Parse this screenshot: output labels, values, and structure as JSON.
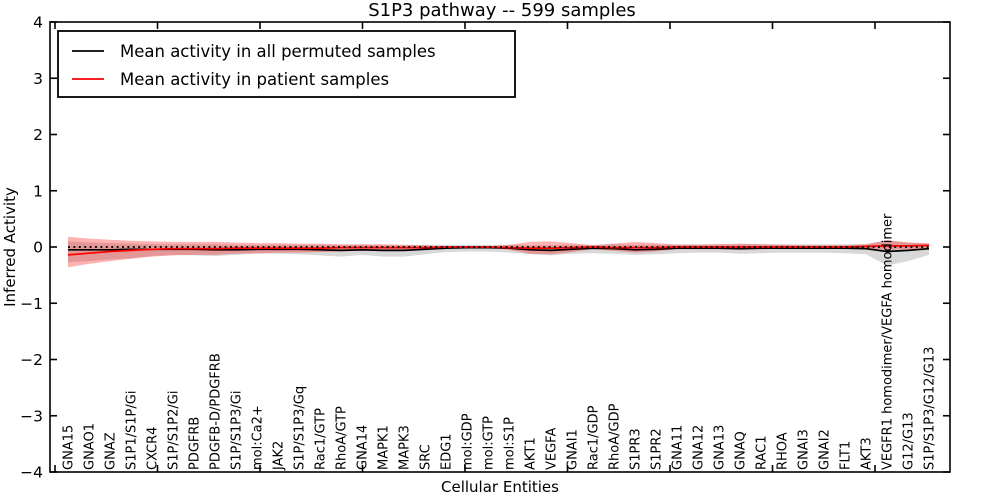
{
  "figure": {
    "title": "S1P3 pathway -- 599 samples",
    "xlabel": "Cellular Entities",
    "ylabel": "Inferred Activity"
  },
  "legend": {
    "items": [
      {
        "label": "Mean activity in all permuted samples",
        "color": "#000000"
      },
      {
        "label": "Mean activity in patient samples",
        "color": "#ff0000"
      }
    ]
  },
  "axes": {
    "yticks": [
      "4",
      "3",
      "2",
      "1",
      "0",
      "−1",
      "−2",
      "−3",
      "−4"
    ],
    "ytick_values": [
      4,
      3,
      2,
      1,
      0,
      -1,
      -2,
      -3,
      -4
    ],
    "ylim": [
      -4,
      4
    ],
    "x_major_tick_count": 9
  },
  "chart_data": {
    "type": "line",
    "title": "S1P3 pathway -- 599 samples",
    "xlabel": "Cellular Entities",
    "ylabel": "Inferred Activity",
    "ylim": [
      -4,
      4
    ],
    "legend_position": "upper left",
    "grid": false,
    "categories": [
      "GNA15",
      "GNAO1",
      "GNAZ",
      "S1P1/S1P/Gi",
      "CXCR4",
      "S1P/S1P2/Gi",
      "PDGFRB",
      "PDGFB-D/PDGFRB",
      "S1P/S1P3/Gi",
      "mol:Ca2+",
      "JAK2",
      "S1P/S1P3/Gq",
      "Rac1/GTP",
      "RhoA/GTP",
      "GNA14",
      "MAPK1",
      "MAPK3",
      "SRC",
      "EDG1",
      "mol:GDP",
      "mol:GTP",
      "mol:S1P",
      "AKT1",
      "VEGFA",
      "GNAI1",
      "Rac1/GDP",
      "RhoA/GDP",
      "S1PR3",
      "S1PR2",
      "GNA11",
      "GNA12",
      "GNA13",
      "GNAQ",
      "RAC1",
      "RHOA",
      "GNAI3",
      "GNAI2",
      "FLT1",
      "AKT3",
      "VEGFR1 homodimer/VEGFA homodimer",
      "G12/G13",
      "S1P/S1P3/G12/G13"
    ],
    "series": [
      {
        "name": "Mean activity in all permuted samples",
        "color": "#000000",
        "values": [
          -0.05,
          -0.05,
          -0.05,
          -0.04,
          -0.04,
          -0.04,
          -0.04,
          -0.05,
          -0.05,
          -0.04,
          -0.04,
          -0.04,
          -0.05,
          -0.06,
          -0.05,
          -0.06,
          -0.06,
          -0.04,
          -0.02,
          -0.01,
          -0.01,
          -0.02,
          -0.05,
          -0.06,
          -0.04,
          -0.02,
          -0.03,
          -0.05,
          -0.04,
          -0.02,
          -0.02,
          -0.02,
          -0.03,
          -0.02,
          -0.02,
          -0.02,
          -0.02,
          -0.02,
          -0.03,
          -0.08,
          -0.06,
          -0.03
        ]
      },
      {
        "name": "Mean activity in patient samples",
        "color": "#ff0000",
        "values": [
          -0.14,
          -0.11,
          -0.08,
          -0.06,
          -0.04,
          -0.03,
          -0.03,
          -0.03,
          -0.02,
          -0.02,
          -0.02,
          -0.02,
          -0.02,
          -0.01,
          -0.01,
          -0.01,
          -0.01,
          -0.01,
          0.0,
          0.0,
          0.0,
          -0.01,
          -0.02,
          -0.02,
          -0.01,
          0.0,
          -0.01,
          -0.01,
          -0.01,
          0.0,
          0.0,
          0.0,
          0.0,
          0.0,
          0.0,
          0.0,
          0.0,
          0.0,
          0.01,
          0.02,
          0.02,
          0.03
        ]
      }
    ],
    "bands": [
      {
        "name": "permuted-samples-envelope",
        "color": "#999999",
        "opacity": 0.38,
        "upper": [
          0.1,
          0.08,
          0.07,
          0.06,
          0.05,
          0.05,
          0.05,
          0.05,
          0.04,
          0.04,
          0.04,
          0.04,
          0.04,
          0.03,
          0.04,
          0.03,
          0.03,
          0.04,
          0.04,
          0.04,
          0.04,
          0.04,
          0.03,
          0.03,
          0.04,
          0.04,
          0.05,
          0.04,
          0.04,
          0.05,
          0.05,
          0.05,
          0.05,
          0.05,
          0.05,
          0.05,
          0.05,
          0.05,
          0.05,
          0.12,
          0.08,
          0.05
        ],
        "lower": [
          -0.27,
          -0.25,
          -0.22,
          -0.2,
          -0.16,
          -0.14,
          -0.15,
          -0.16,
          -0.14,
          -0.12,
          -0.12,
          -0.13,
          -0.15,
          -0.17,
          -0.14,
          -0.17,
          -0.17,
          -0.13,
          -0.09,
          -0.08,
          -0.08,
          -0.1,
          -0.13,
          -0.15,
          -0.12,
          -0.11,
          -0.12,
          -0.14,
          -0.13,
          -0.11,
          -0.1,
          -0.1,
          -0.12,
          -0.11,
          -0.1,
          -0.1,
          -0.1,
          -0.11,
          -0.13,
          -0.33,
          -0.25,
          -0.14
        ]
      },
      {
        "name": "patient-samples-envelope",
        "color": "#ff0000",
        "opacity": 0.3,
        "upper": [
          0.18,
          0.15,
          0.13,
          0.11,
          0.1,
          0.09,
          0.09,
          0.09,
          0.08,
          0.07,
          0.07,
          0.06,
          0.06,
          0.05,
          0.05,
          0.05,
          0.04,
          0.03,
          0.01,
          0.01,
          0.01,
          0.04,
          0.09,
          0.1,
          0.07,
          0.03,
          0.06,
          0.09,
          0.07,
          0.04,
          0.04,
          0.05,
          0.06,
          0.05,
          0.04,
          0.03,
          0.03,
          0.03,
          0.05,
          0.12,
          0.08,
          0.07
        ],
        "lower": [
          -0.36,
          -0.3,
          -0.25,
          -0.21,
          -0.17,
          -0.15,
          -0.14,
          -0.14,
          -0.12,
          -0.11,
          -0.1,
          -0.1,
          -0.09,
          -0.08,
          -0.07,
          -0.07,
          -0.06,
          -0.04,
          -0.01,
          -0.01,
          -0.01,
          -0.05,
          -0.12,
          -0.13,
          -0.09,
          -0.04,
          -0.07,
          -0.1,
          -0.08,
          -0.04,
          -0.04,
          -0.04,
          -0.05,
          -0.04,
          -0.03,
          -0.03,
          -0.03,
          -0.03,
          -0.03,
          -0.05,
          -0.04,
          -0.04
        ]
      }
    ],
    "zero_line": {
      "value": 0,
      "style": "dotted",
      "color": "#000000"
    }
  }
}
